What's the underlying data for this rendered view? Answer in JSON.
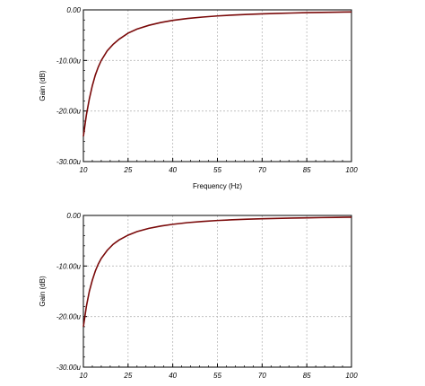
{
  "chart_data": [
    {
      "type": "line",
      "xlabel": "Frequency (Hz)",
      "ylabel": "Gain (dB)",
      "xlim": [
        10,
        100
      ],
      "ylim": [
        -30,
        0
      ],
      "x_ticks": [
        "10",
        "25",
        "40",
        "55",
        "70",
        "85",
        "100"
      ],
      "y_ticks": [
        "0.00",
        "-10.00u",
        "-20.00u",
        "-30.00u"
      ],
      "grid": true,
      "series": [
        {
          "x": [
            10,
            11,
            12,
            13,
            14,
            15,
            16,
            18,
            20,
            22,
            25,
            28,
            32,
            36,
            40,
            45,
            50,
            55,
            60,
            65,
            70,
            75,
            80,
            85,
            90,
            95,
            100
          ],
          "y": [
            -25.0,
            -20.8,
            -17.6,
            -15.0,
            -12.9,
            -11.3,
            -10.0,
            -8.1,
            -6.8,
            -5.8,
            -4.6,
            -3.8,
            -3.05,
            -2.5,
            -2.08,
            -1.7,
            -1.42,
            -1.2,
            -1.03,
            -0.9,
            -0.79,
            -0.7,
            -0.62,
            -0.55,
            -0.5,
            -0.45,
            -0.41
          ]
        }
      ]
    },
    {
      "type": "line",
      "xlabel": "",
      "ylabel": "Gain (dB)",
      "xlim": [
        10,
        100
      ],
      "ylim": [
        -30,
        0
      ],
      "x_ticks": [
        "10",
        "25",
        "40",
        "55",
        "70",
        "85",
        "100"
      ],
      "y_ticks": [
        "0.00",
        "-10.00u",
        "-20.00u",
        "-30.00u"
      ],
      "grid": true,
      "series": [
        {
          "x": [
            10,
            11,
            12,
            13,
            14,
            15,
            16,
            18,
            20,
            22,
            25,
            28,
            32,
            36,
            40,
            45,
            50,
            55,
            60,
            65,
            70,
            75,
            80,
            85,
            90,
            95,
            100
          ],
          "y": [
            -22.0,
            -18.0,
            -15.0,
            -12.8,
            -11.0,
            -9.6,
            -8.5,
            -6.9,
            -5.7,
            -4.85,
            -3.9,
            -3.2,
            -2.55,
            -2.1,
            -1.75,
            -1.42,
            -1.18,
            -1.0,
            -0.86,
            -0.75,
            -0.66,
            -0.58,
            -0.52,
            -0.47,
            -0.42,
            -0.38,
            -0.35
          ]
        }
      ]
    }
  ]
}
